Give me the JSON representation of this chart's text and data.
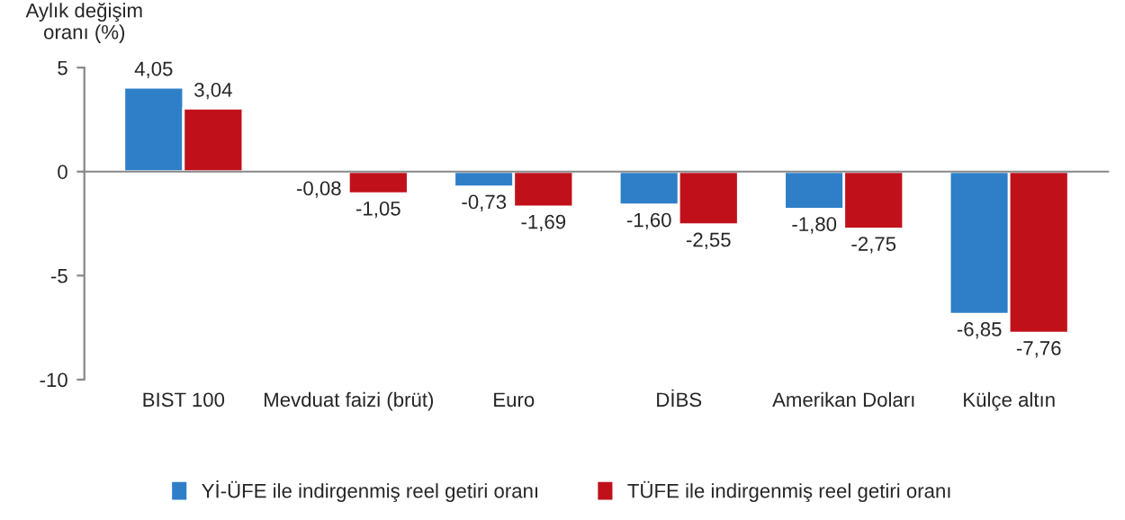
{
  "chart_data": {
    "type": "bar",
    "ylabel": "Aylık değişim\noranı (%)",
    "categories": [
      "BIST 100",
      "Mevduat faizi (brüt)",
      "Euro",
      "DİBS",
      "Amerikan Doları",
      "Külçe altın"
    ],
    "series": [
      {
        "name": "Yİ-ÜFE ile indirgenmiş reel getiri oranı",
        "color": "#2f7fc8",
        "values": [
          4.05,
          -0.08,
          -0.73,
          -1.6,
          -1.8,
          -6.85
        ],
        "value_labels": [
          "4,05",
          "-0,08",
          "-0,73",
          "-1,60",
          "-1,80",
          "-6,85"
        ]
      },
      {
        "name": "TÜFE ile indirgenmiş reel getiri oranı",
        "color": "#c0111b",
        "values": [
          3.04,
          -1.05,
          -1.69,
          -2.55,
          -2.75,
          -7.76
        ],
        "value_labels": [
          "3,04",
          "-1,05",
          "-1,69",
          "-2,55",
          "-2,75",
          "-7,76"
        ]
      }
    ],
    "ylim": [
      -10,
      5
    ],
    "yticks": [
      -10,
      -5,
      0,
      5
    ],
    "legend": "bottom"
  }
}
